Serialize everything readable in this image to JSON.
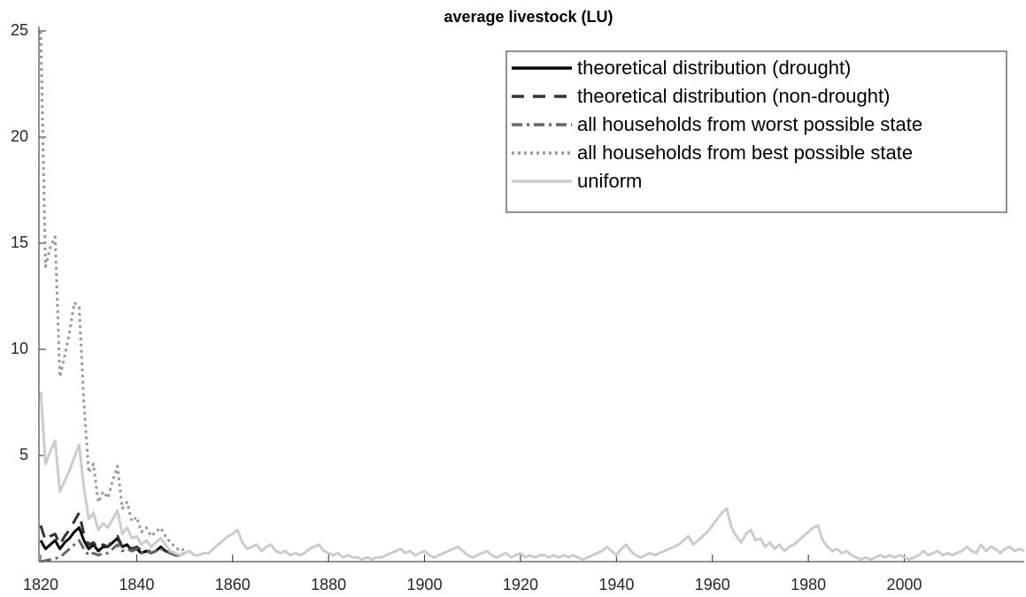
{
  "chart_data": {
    "type": "line",
    "title": "average livestock (LU)",
    "xlim": [
      1820,
      2025
    ],
    "xticks": [
      1820,
      1840,
      1860,
      1880,
      1900,
      1920,
      1940,
      1960,
      1980,
      2000
    ],
    "ylim": [
      0,
      25
    ],
    "yticks": [
      5,
      10,
      15,
      20,
      25
    ],
    "legend": "northeast",
    "series": [
      {
        "name": "theoretical distribution (drought)",
        "color": "#000000",
        "dash": "solid",
        "x": [
          1820,
          1821,
          1822,
          1823,
          1824,
          1825,
          1826,
          1827,
          1828,
          1829,
          1830,
          1831,
          1832,
          1833,
          1834,
          1835,
          1836,
          1837,
          1838,
          1839,
          1840,
          1841,
          1842,
          1843,
          1844,
          1845,
          1846,
          1847,
          1848,
          1849,
          1850
        ],
        "values": [
          1.0,
          0.6,
          0.8,
          1.0,
          0.6,
          0.9,
          1.1,
          1.4,
          1.6,
          1.0,
          0.6,
          0.8,
          0.5,
          0.7,
          0.7,
          0.9,
          1.1,
          0.7,
          0.8,
          0.5,
          0.6,
          0.4,
          0.5,
          0.4,
          0.5,
          0.7,
          0.5,
          0.4,
          0.3,
          0.3,
          0.4
        ]
      },
      {
        "name": "theoretical distribution (non-drought)",
        "color": "#333333",
        "dash": "dashed",
        "x": [
          1820,
          1821,
          1822,
          1823,
          1824,
          1825,
          1826,
          1827,
          1828,
          1829,
          1830,
          1831,
          1832,
          1833,
          1834,
          1835,
          1836,
          1837,
          1838,
          1839,
          1840,
          1841,
          1842,
          1843,
          1844,
          1845,
          1846,
          1847,
          1848,
          1849,
          1850
        ],
        "values": [
          1.7,
          1.0,
          1.2,
          1.3,
          0.8,
          1.2,
          1.5,
          1.9,
          2.3,
          1.3,
          0.8,
          0.9,
          0.6,
          0.8,
          0.7,
          1.0,
          1.2,
          0.7,
          0.8,
          0.6,
          0.7,
          0.5,
          0.6,
          0.4,
          0.5,
          0.7,
          0.5,
          0.4,
          0.3,
          0.3,
          0.4
        ]
      },
      {
        "name": "all households from worst possible state",
        "color": "#666666",
        "dash": "dashdot",
        "x": [
          1820,
          1821,
          1822,
          1823,
          1824,
          1825,
          1826,
          1827,
          1828,
          1829,
          1830,
          1831,
          1832,
          1833,
          1834,
          1835,
          1836,
          1837,
          1838,
          1839,
          1840,
          1841,
          1842,
          1843,
          1844,
          1845,
          1846,
          1847,
          1848,
          1849,
          1850
        ],
        "values": [
          0,
          0.05,
          0.1,
          0.15,
          0.2,
          0.4,
          0.6,
          0.8,
          1.0,
          0.6,
          0.3,
          0.4,
          0.3,
          0.4,
          0.4,
          0.6,
          0.8,
          0.5,
          0.6,
          0.5,
          0.6,
          0.4,
          0.5,
          0.4,
          0.5,
          0.6,
          0.5,
          0.4,
          0.3,
          0.3,
          0.4
        ]
      },
      {
        "name": "all households from best possible state",
        "color": "#999999",
        "dash": "dotted",
        "x": [
          1820,
          1821,
          1822,
          1823,
          1824,
          1825,
          1826,
          1827,
          1828,
          1829,
          1830,
          1831,
          1832,
          1833,
          1834,
          1835,
          1836,
          1837,
          1838,
          1839,
          1840,
          1841,
          1842,
          1843,
          1844,
          1845,
          1846,
          1847,
          1848,
          1849,
          1850
        ],
        "values": [
          25,
          13.9,
          14.8,
          15.3,
          8.7,
          9.7,
          10.8,
          12.2,
          12.0,
          7.5,
          4.2,
          4.6,
          2.8,
          3.3,
          3.0,
          3.8,
          4.5,
          2.5,
          2.8,
          1.9,
          2.1,
          1.4,
          1.6,
          1.2,
          1.4,
          1.6,
          1.2,
          0.9,
          0.7,
          0.5,
          0.6
        ]
      },
      {
        "name": "uniform",
        "color": "#cccccc",
        "dash": "solid",
        "x": [
          1820,
          1821,
          1822,
          1823,
          1824,
          1825,
          1826,
          1827,
          1828,
          1829,
          1830,
          1831,
          1832,
          1833,
          1834,
          1835,
          1836,
          1837,
          1838,
          1839,
          1840,
          1841,
          1842,
          1843,
          1844,
          1845,
          1846,
          1847,
          1848,
          1849,
          1850,
          1851,
          1852,
          1853,
          1854,
          1855,
          1856,
          1857,
          1858,
          1859,
          1860,
          1861,
          1862,
          1863,
          1864,
          1865,
          1866,
          1867,
          1868,
          1869,
          1870,
          1871,
          1872,
          1873,
          1874,
          1875,
          1876,
          1877,
          1878,
          1879,
          1880,
          1881,
          1882,
          1883,
          1884,
          1885,
          1886,
          1887,
          1888,
          1889,
          1890,
          1891,
          1892,
          1893,
          1894,
          1895,
          1896,
          1897,
          1898,
          1899,
          1900,
          1901,
          1902,
          1903,
          1904,
          1905,
          1906,
          1907,
          1908,
          1909,
          1910,
          1911,
          1912,
          1913,
          1914,
          1915,
          1916,
          1917,
          1918,
          1919,
          1920,
          1921,
          1922,
          1923,
          1924,
          1925,
          1926,
          1927,
          1928,
          1929,
          1930,
          1931,
          1932,
          1933,
          1934,
          1935,
          1936,
          1937,
          1938,
          1939,
          1940,
          1941,
          1942,
          1943,
          1944,
          1945,
          1946,
          1947,
          1948,
          1949,
          1950,
          1951,
          1952,
          1953,
          1954,
          1955,
          1956,
          1957,
          1958,
          1959,
          1960,
          1961,
          1962,
          1963,
          1964,
          1965,
          1966,
          1967,
          1968,
          1969,
          1970,
          1971,
          1972,
          1973,
          1974,
          1975,
          1976,
          1977,
          1978,
          1979,
          1980,
          1981,
          1982,
          1983,
          1984,
          1985,
          1986,
          1987,
          1988,
          1989,
          1990,
          1991,
          1992,
          1993,
          1994,
          1995,
          1996,
          1997,
          1998,
          1999,
          2000,
          2001,
          2002,
          2003,
          2004,
          2005,
          2006,
          2007,
          2008,
          2009,
          2010,
          2011,
          2012,
          2013,
          2014,
          2015,
          2016,
          2017,
          2018,
          2019,
          2020,
          2021,
          2022,
          2023,
          2024,
          2025
        ],
        "values": [
          8,
          4.6,
          5.2,
          5.7,
          3.3,
          3.8,
          4.3,
          4.9,
          5.5,
          3.5,
          2.0,
          2.3,
          1.5,
          1.8,
          1.6,
          2.0,
          2.4,
          1.3,
          1.6,
          1.1,
          1.2,
          0.8,
          1.0,
          0.7,
          0.9,
          1.1,
          0.8,
          0.5,
          0.4,
          0.3,
          0.4,
          0.5,
          0.3,
          0.3,
          0.4,
          0.4,
          0.6,
          0.8,
          1.0,
          1.2,
          1.3,
          1.5,
          0.9,
          0.6,
          0.7,
          0.8,
          0.5,
          0.7,
          0.8,
          0.5,
          0.4,
          0.5,
          0.3,
          0.4,
          0.3,
          0.4,
          0.6,
          0.7,
          0.8,
          0.5,
          0.4,
          0.3,
          0.4,
          0.2,
          0.3,
          0.2,
          0.2,
          0.1,
          0.2,
          0.1,
          0.2,
          0.2,
          0.3,
          0.4,
          0.5,
          0.6,
          0.4,
          0.5,
          0.3,
          0.4,
          0.5,
          0.3,
          0.2,
          0.3,
          0.4,
          0.5,
          0.6,
          0.7,
          0.5,
          0.3,
          0.2,
          0.3,
          0.4,
          0.5,
          0.3,
          0.2,
          0.3,
          0.4,
          0.2,
          0.3,
          0.4,
          0.2,
          0.3,
          0.2,
          0.3,
          0.3,
          0.2,
          0.3,
          0.2,
          0.3,
          0.2,
          0.3,
          0.2,
          0.1,
          0.2,
          0.3,
          0.4,
          0.5,
          0.7,
          0.5,
          0.3,
          0.6,
          0.8,
          0.5,
          0.3,
          0.2,
          0.3,
          0.4,
          0.3,
          0.4,
          0.5,
          0.6,
          0.7,
          0.8,
          1.0,
          1.2,
          0.8,
          1.0,
          1.2,
          1.4,
          1.7,
          2.0,
          2.3,
          2.5,
          1.6,
          1.2,
          0.9,
          1.3,
          1.5,
          1.0,
          1.1,
          0.7,
          0.9,
          0.6,
          0.8,
          0.5,
          0.7,
          0.8,
          1.0,
          1.2,
          1.4,
          1.6,
          1.7,
          1.0,
          0.7,
          0.5,
          0.6,
          0.4,
          0.5,
          0.3,
          0.2,
          0.1,
          0.2,
          0.1,
          0.2,
          0.3,
          0.2,
          0.3,
          0.2,
          0.3,
          0.2,
          0.1,
          0.2,
          0.3,
          0.5,
          0.3,
          0.4,
          0.5,
          0.3,
          0.4,
          0.3,
          0.4,
          0.5,
          0.7,
          0.5,
          0.4,
          0.8,
          0.5,
          0.7,
          0.6,
          0.4,
          0.6,
          0.7,
          0.5,
          0.6,
          0.5
        ]
      }
    ]
  }
}
